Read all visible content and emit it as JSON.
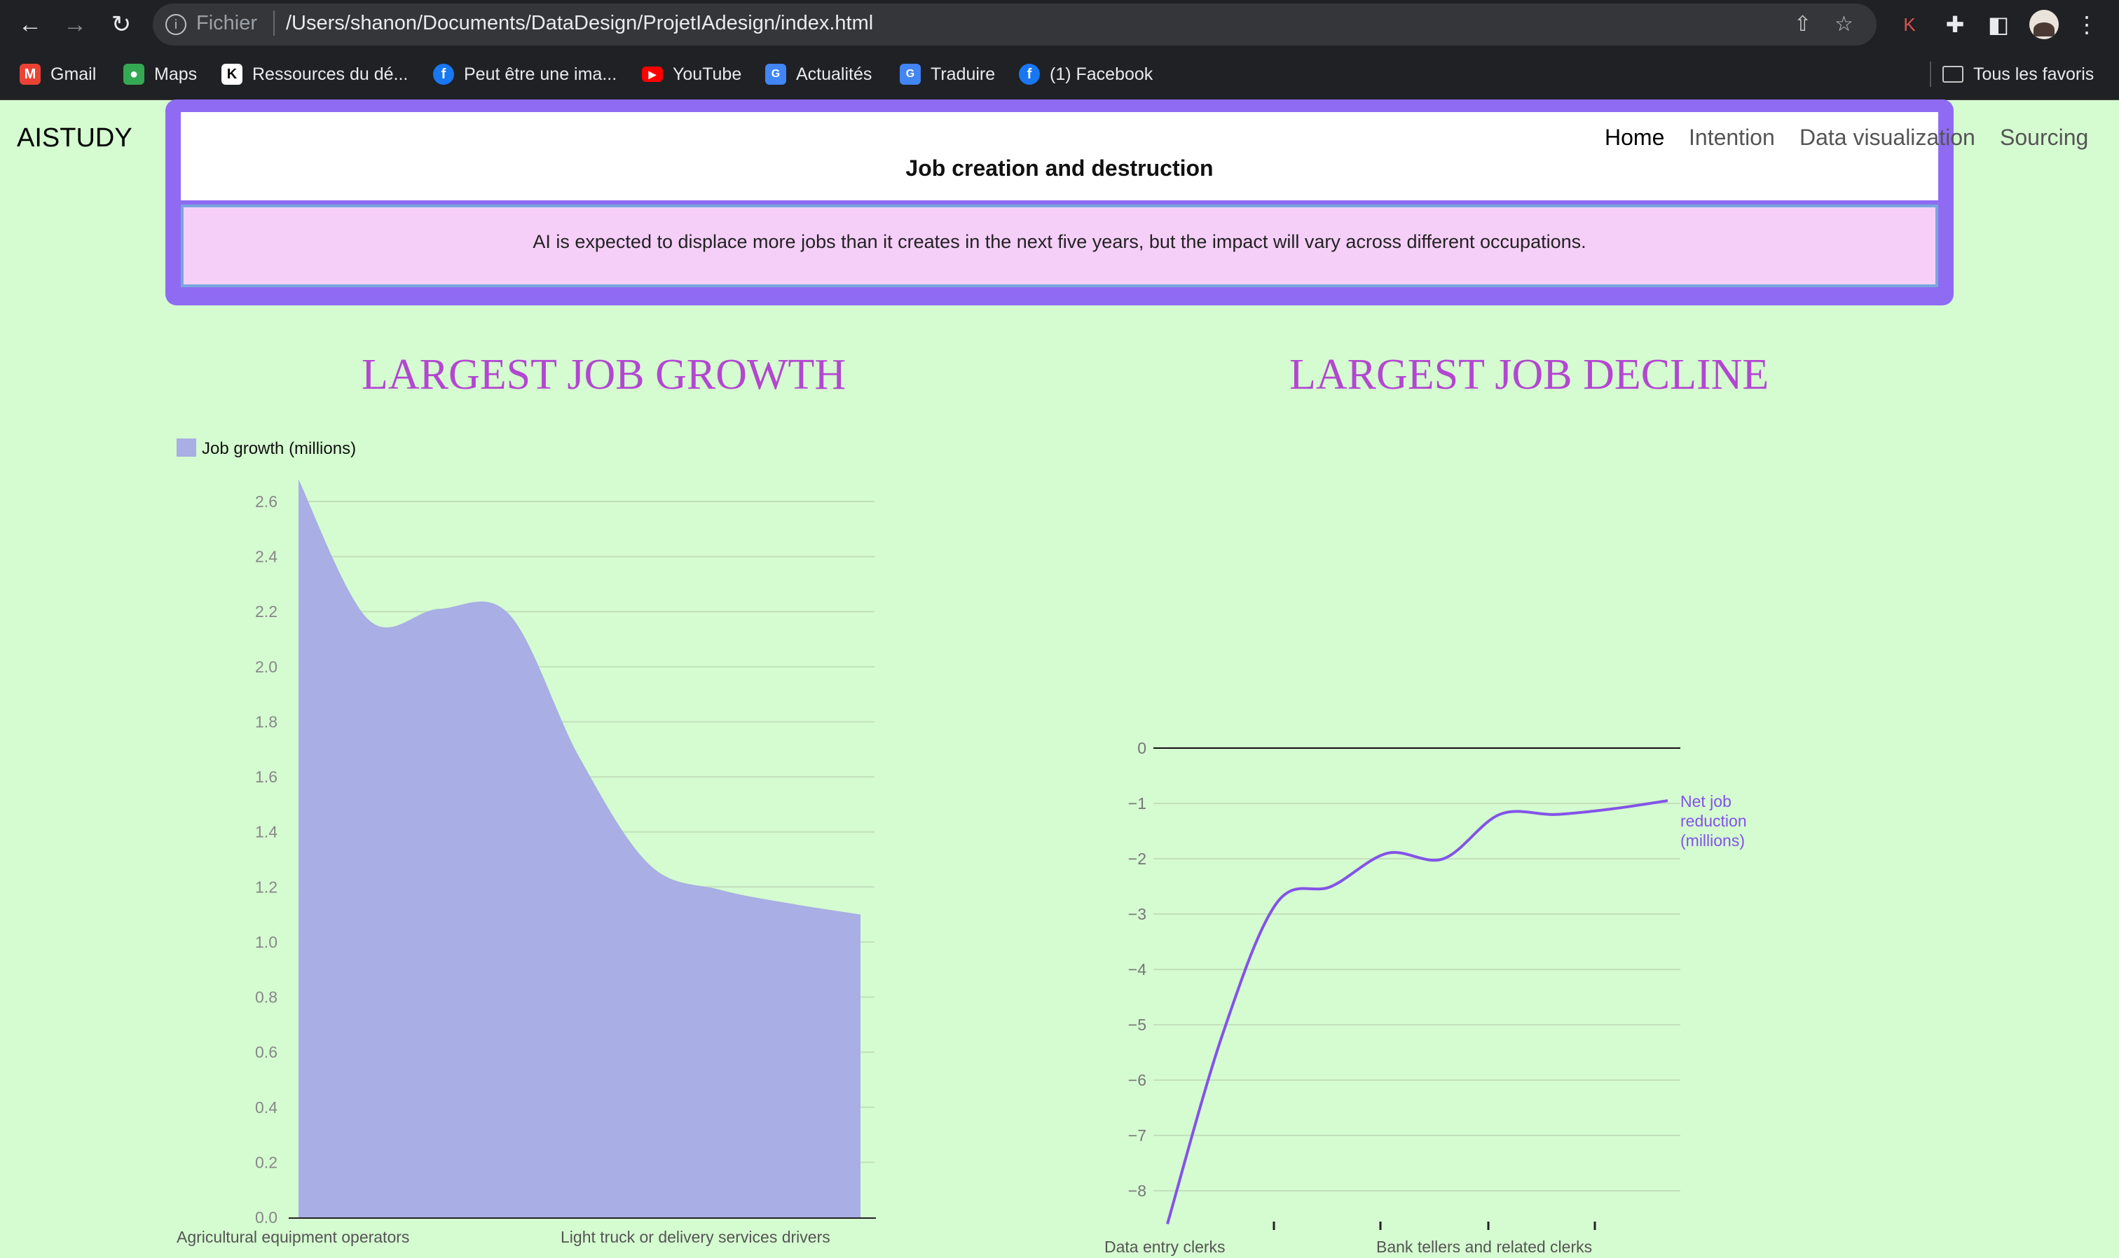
{
  "browser": {
    "scheme": "Fichier",
    "url": "/Users/shanon/Documents/DataDesign/ProjetIAdesign/index.html",
    "bookmarks": [
      {
        "label": "Gmail",
        "icon": "gmail-icon"
      },
      {
        "label": "Maps",
        "icon": "maps-icon"
      },
      {
        "label": "Ressources du dé...",
        "icon": "bookmark-k-icon"
      },
      {
        "label": "Peut être une ima...",
        "icon": "facebook-icon"
      },
      {
        "label": "YouTube",
        "icon": "youtube-icon"
      },
      {
        "label": "Actualités",
        "icon": "news-icon"
      },
      {
        "label": "Traduire",
        "icon": "translate-icon"
      },
      {
        "label": "(1) Facebook",
        "icon": "facebook-icon"
      }
    ],
    "all_bookmarks": "Tous les favoris",
    "extension_letter": "K"
  },
  "site": {
    "brand": "AISTUDY",
    "nav": [
      "Home",
      "Intention",
      "Data visualization",
      "Sourcing"
    ]
  },
  "card": {
    "title": "Job creation and destruction",
    "text": "AI is expected to displace more jobs than it creates in the next five years, but the impact will vary across different occupations."
  },
  "sections": {
    "growth_title": "LARGEST JOB GROWTH",
    "decline_title": "LARGEST JOB DECLINE"
  },
  "colors": {
    "page_bg": "#d5fbd0",
    "card_frame": "#8f6bf3",
    "card_body": "#f5cff8",
    "title": "#b347d1",
    "area_fill": "#a9aee4",
    "decline_line": "#8353e8"
  },
  "chart_data": [
    {
      "type": "area",
      "legend": "Job growth (millions)",
      "series": [
        {
          "name": "Job growth (millions)",
          "values": [
            2.68,
            2.17,
            2.21,
            2.19,
            1.67,
            1.28,
            1.19,
            1.14,
            1.1
          ]
        }
      ],
      "ylim": [
        0,
        2.6
      ],
      "yticks": [
        "0.0",
        "0.2",
        "0.4",
        "0.6",
        "0.8",
        "1.0",
        "1.2",
        "1.4",
        "1.6",
        "1.8",
        "2.0",
        "2.2",
        "2.4",
        "2.6"
      ],
      "x_tick_labels": [
        "Agricultural equipment operators",
        "Light truck or delivery services drivers"
      ],
      "grid": true
    },
    {
      "type": "line",
      "series": [
        {
          "name": "Net job reduction (millions)",
          "values": [
            -8.6,
            -5.2,
            -2.8,
            -2.5,
            -1.9,
            -2.0,
            -1.2,
            -1.2,
            -1.1,
            -0.95
          ]
        }
      ],
      "ylim": [
        -8,
        0
      ],
      "yticks": [
        "0",
        "−1",
        "−2",
        "−3",
        "−4",
        "−5",
        "−6",
        "−7",
        "−8"
      ],
      "x_tick_labels": [
        "Data entry clerks",
        "Bank tellers and related clerks"
      ],
      "line_label": [
        "Net job",
        "reduction",
        "(millions)"
      ],
      "grid": true
    }
  ]
}
